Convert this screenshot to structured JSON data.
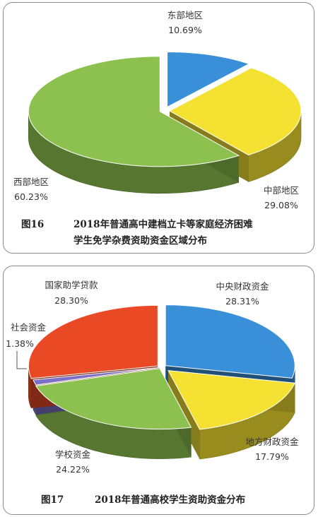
{
  "chart_data": [
    {
      "type": "pie",
      "caption_number": "图16",
      "caption_lines": [
        "2018年普通高中建档立卡等家庭经济困难",
        "学生免学杂费资助资金区域分布"
      ],
      "slices": [
        {
          "label": "东部地区",
          "value": 10.69,
          "value_text": "10.69%",
          "color": "#3a8fd9"
        },
        {
          "label": "中部地区",
          "value": 29.08,
          "value_text": "29.08%",
          "color": "#f5e132"
        },
        {
          "label": "西部地区",
          "value": 60.23,
          "value_text": "60.23%",
          "color": "#8cc04f"
        }
      ]
    },
    {
      "type": "pie",
      "caption_number": "图17",
      "caption_lines": [
        "2018年普通高校学生资助资金分布"
      ],
      "slices": [
        {
          "label": "中央财政资金",
          "value": 28.31,
          "value_text": "28.31%",
          "color": "#3a8fd9"
        },
        {
          "label": "地方财政资金",
          "value": 17.79,
          "value_text": "17.79%",
          "color": "#f5e132"
        },
        {
          "label": "学校资金",
          "value": 24.22,
          "value_text": "24.22%",
          "color": "#8cc04f"
        },
        {
          "label": "社会资金",
          "value": 1.38,
          "value_text": "1.38%",
          "color": "#7b6fc9"
        },
        {
          "label": "国家助学贷款",
          "value": 28.3,
          "value_text": "28.30%",
          "color": "#e94a25"
        }
      ]
    }
  ]
}
